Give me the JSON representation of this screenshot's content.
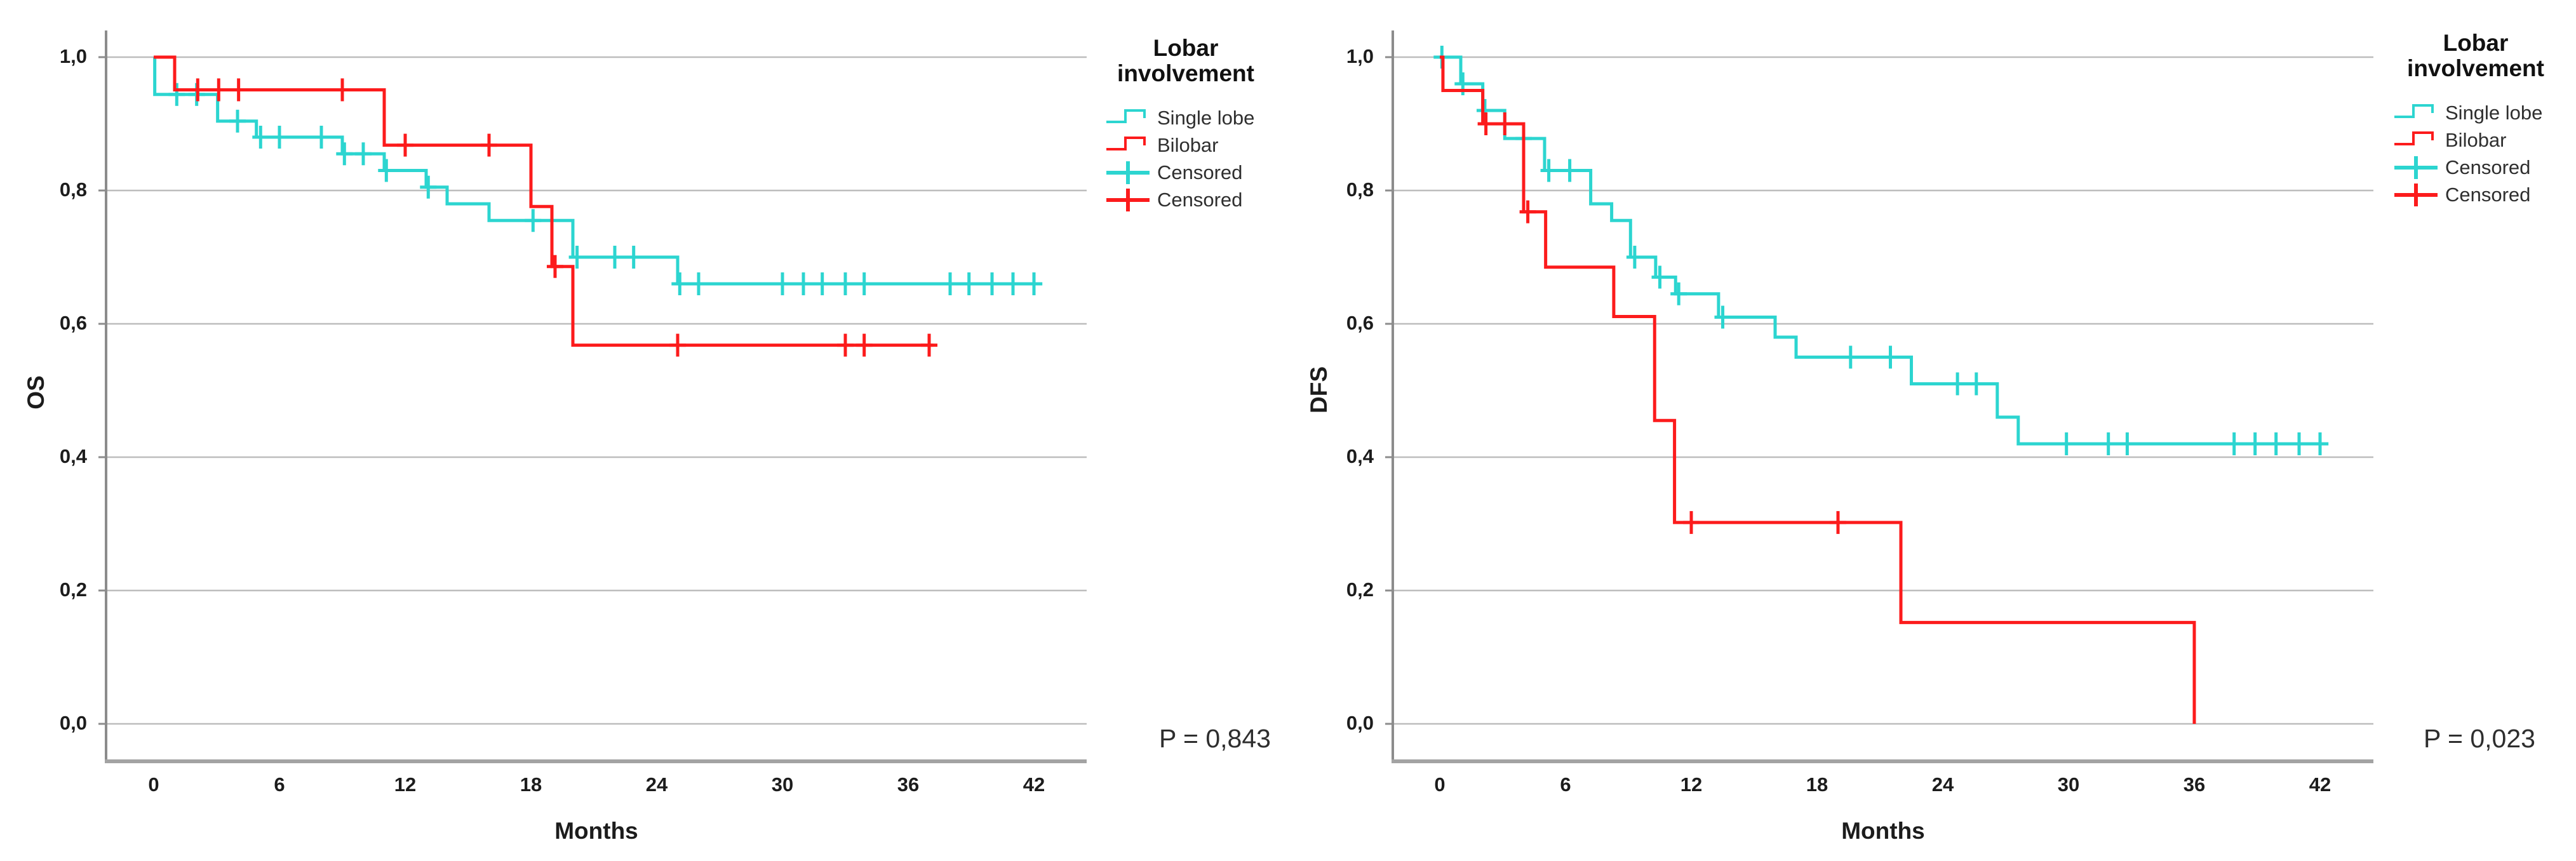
{
  "figure": {
    "background": "#ffffff"
  },
  "colors": {
    "single_lobe": "#2CD5D0",
    "bilobar": "#FC1B1C",
    "grid": "#bdbdbd",
    "axis": "#8c8c8c",
    "frame": "#a3a3a3"
  },
  "legend": {
    "title_line1": "Lobar",
    "title_line2": "involvement",
    "items": [
      {
        "label": "Single lobe",
        "color": "#2CD5D0",
        "marker": "step"
      },
      {
        "label": "Bilobar",
        "color": "#FC1B1C",
        "marker": "step"
      },
      {
        "label": "Censored",
        "color": "#2CD5D0",
        "marker": "plus"
      },
      {
        "label": "Censored",
        "color": "#FC1B1C",
        "marker": "plus"
      }
    ]
  },
  "chart_data": [
    {
      "type": "line",
      "subtype": "kaplan-meier-step",
      "title": "",
      "ylabel": "OS",
      "xlabel": "Months",
      "p_label": "P = 0,843",
      "xlim": [
        0,
        44
      ],
      "ylim": [
        0,
        1
      ],
      "grid": true,
      "legend_position": "right-top",
      "xtick_labels": [
        "0",
        "6",
        "12",
        "18",
        "24",
        "30",
        "36",
        "42"
      ],
      "xticks": [
        0,
        6,
        12,
        18,
        24,
        30,
        36,
        42
      ],
      "ytick_labels": [
        "1,0",
        "0,8",
        "0,6",
        "0,4",
        "0,2",
        "0,0"
      ],
      "yticks": [
        1.0,
        0.8,
        0.6,
        0.4,
        0.2,
        0.0
      ],
      "series": [
        {
          "name": "Single lobe",
          "color": "#2CD5D0",
          "end": 42.4,
          "points": [
            [
              0,
              1.0
            ],
            [
              0.05,
              0.944
            ],
            [
              3.05,
              0.904
            ],
            [
              4.9,
              0.88
            ],
            [
              9.0,
              0.855
            ],
            [
              11.0,
              0.83
            ],
            [
              13.0,
              0.805
            ],
            [
              14.0,
              0.78
            ],
            [
              16.0,
              0.755
            ],
            [
              20.0,
              0.7
            ],
            [
              25.0,
              0.66
            ]
          ],
          "censors": [
            [
              1.1,
              0.944
            ],
            [
              2.05,
              0.944
            ],
            [
              4.0,
              0.904
            ],
            [
              5.1,
              0.88
            ],
            [
              6.0,
              0.88
            ],
            [
              8.0,
              0.88
            ],
            [
              9.1,
              0.855
            ],
            [
              10.0,
              0.855
            ],
            [
              11.1,
              0.83
            ],
            [
              13.1,
              0.805
            ],
            [
              18.1,
              0.755
            ],
            [
              20.2,
              0.7
            ],
            [
              22.0,
              0.7
            ],
            [
              22.9,
              0.7
            ],
            [
              25.1,
              0.66
            ],
            [
              26.0,
              0.66
            ],
            [
              30.0,
              0.66
            ],
            [
              31.0,
              0.66
            ],
            [
              31.9,
              0.66
            ],
            [
              33.0,
              0.66
            ],
            [
              33.9,
              0.66
            ],
            [
              38.0,
              0.66
            ],
            [
              38.9,
              0.66
            ],
            [
              40.0,
              0.66
            ],
            [
              41.0,
              0.66
            ],
            [
              42.0,
              0.66
            ]
          ]
        },
        {
          "name": "Bilobar",
          "color": "#FC1B1C",
          "end": 37.2,
          "points": [
            [
              0,
              1.0
            ],
            [
              1.0,
              0.951
            ],
            [
              11.0,
              0.868
            ],
            [
              18.0,
              0.776
            ],
            [
              19.0,
              0.686
            ],
            [
              20.0,
              0.568
            ]
          ],
          "censors": [
            [
              2.1,
              0.951
            ],
            [
              3.1,
              0.951
            ],
            [
              4.05,
              0.951
            ],
            [
              9.0,
              0.951
            ],
            [
              12.0,
              0.868
            ],
            [
              16.0,
              0.868
            ],
            [
              19.15,
              0.686
            ],
            [
              25.0,
              0.568
            ],
            [
              33.0,
              0.568
            ],
            [
              33.9,
              0.568
            ],
            [
              37.0,
              0.568
            ]
          ]
        }
      ]
    },
    {
      "type": "line",
      "subtype": "kaplan-meier-step",
      "title": "",
      "ylabel": "DFS",
      "xlabel": "Months",
      "p_label": "P = 0,023",
      "xlim": [
        0,
        44
      ],
      "ylim": [
        0,
        1
      ],
      "grid": true,
      "legend_position": "right-top",
      "xtick_labels": [
        "0",
        "6",
        "12",
        "18",
        "24",
        "30",
        "36",
        "42"
      ],
      "xticks": [
        0,
        6,
        12,
        18,
        24,
        30,
        36,
        42
      ],
      "ytick_labels": [
        "1,0",
        "0,8",
        "0,6",
        "0,4",
        "0,2",
        "0,0"
      ],
      "yticks": [
        1.0,
        0.8,
        0.6,
        0.4,
        0.2,
        0.0
      ],
      "series": [
        {
          "name": "Single lobe",
          "color": "#2CD5D0",
          "end": 42.4,
          "points": [
            [
              0,
              1.0
            ],
            [
              1.0,
              0.96
            ],
            [
              2.05,
              0.92
            ],
            [
              3.1,
              0.878
            ],
            [
              5.0,
              0.83
            ],
            [
              7.2,
              0.78
            ],
            [
              8.2,
              0.755
            ],
            [
              9.1,
              0.7
            ],
            [
              10.3,
              0.67
            ],
            [
              11.25,
              0.645
            ],
            [
              13.3,
              0.61
            ],
            [
              16.0,
              0.58
            ],
            [
              17.0,
              0.55
            ],
            [
              22.5,
              0.51
            ],
            [
              26.6,
              0.46
            ],
            [
              27.6,
              0.42
            ]
          ],
          "censors": [
            [
              0.1,
              1.0
            ],
            [
              1.1,
              0.96
            ],
            [
              2.15,
              0.92
            ],
            [
              4.0,
              0.878
            ],
            [
              5.2,
              0.83
            ],
            [
              6.2,
              0.83
            ],
            [
              9.3,
              0.7
            ],
            [
              10.5,
              0.67
            ],
            [
              11.4,
              0.645
            ],
            [
              13.5,
              0.61
            ],
            [
              19.6,
              0.55
            ],
            [
              21.5,
              0.55
            ],
            [
              24.7,
              0.51
            ],
            [
              25.6,
              0.51
            ],
            [
              29.9,
              0.42
            ],
            [
              31.9,
              0.42
            ],
            [
              32.8,
              0.42
            ],
            [
              37.9,
              0.42
            ],
            [
              38.9,
              0.42
            ],
            [
              39.9,
              0.42
            ],
            [
              41.0,
              0.42
            ],
            [
              42.0,
              0.42
            ]
          ]
        },
        {
          "name": "Bilobar",
          "color": "#FC1B1C",
          "end": 36.0,
          "points": [
            [
              0,
              1.0
            ],
            [
              0.15,
              0.95
            ],
            [
              2.05,
              0.9
            ],
            [
              4.0,
              0.768
            ],
            [
              5.05,
              0.685
            ],
            [
              8.3,
              0.611
            ],
            [
              10.25,
              0.455
            ],
            [
              11.2,
              0.302
            ],
            [
              22.0,
              0.152
            ],
            [
              36.0,
              0.0
            ]
          ],
          "censors": [
            [
              2.2,
              0.9
            ],
            [
              3.1,
              0.9
            ],
            [
              4.2,
              0.768
            ],
            [
              12.0,
              0.302
            ],
            [
              19.0,
              0.302
            ]
          ]
        }
      ]
    }
  ]
}
